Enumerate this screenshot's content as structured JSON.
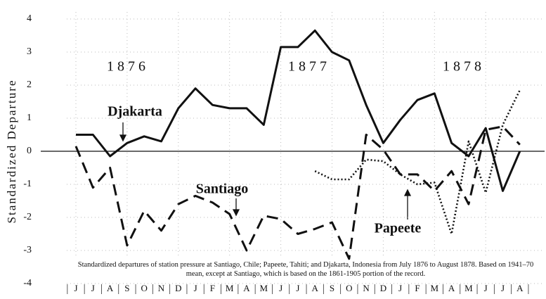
{
  "chart_data": {
    "type": "line",
    "y_label": "Standardized Departure",
    "caption": "Standardized departures of station pressure at Santiago, Chile; Papeete, Tahiti; and Djakarta, Indonesia from July 1876 to August 1878. Based on 1941–70 mean, except at Santiago, which is based on the 1861-1905 portion of the record.",
    "annotations": [
      "1876",
      "1877",
      "1878"
    ],
    "categories": [
      "J",
      "J",
      "A",
      "S",
      "O",
      "N",
      "D",
      "J",
      "F",
      "M",
      "A",
      "M",
      "J",
      "J",
      "A",
      "S",
      "O",
      "N",
      "D",
      "J",
      "F",
      "M",
      "A",
      "M",
      "J",
      "J",
      "A"
    ],
    "series": [
      {
        "name": "Djakarta",
        "color": "#111111",
        "dash": "solid",
        "values": [
          0.5,
          0.5,
          -0.15,
          0.25,
          0.45,
          0.3,
          1.3,
          1.9,
          1.4,
          1.3,
          1.3,
          0.8,
          3.15,
          3.15,
          3.65,
          3.0,
          2.75,
          1.4,
          0.25,
          0.95,
          1.55,
          1.75,
          0.25,
          -0.15,
          0.7,
          -1.2,
          0.0
        ]
      },
      {
        "name": "Santiago",
        "color": "#111111",
        "dash": "dashed",
        "values": [
          0.15,
          -1.1,
          -0.5,
          -2.85,
          -1.8,
          -2.4,
          -1.6,
          -1.35,
          -1.55,
          -1.9,
          -3.0,
          -1.95,
          -2.05,
          -2.5,
          -2.35,
          -2.15,
          -3.25,
          0.5,
          0.05,
          -0.7,
          -0.7,
          -1.2,
          -0.6,
          -1.6,
          0.65,
          0.75,
          0.2
        ]
      },
      {
        "name": "Papeete",
        "color": "#111111",
        "dash": "dotted",
        "values": [
          null,
          null,
          null,
          null,
          null,
          null,
          null,
          null,
          null,
          null,
          null,
          null,
          null,
          null,
          -0.6,
          -0.85,
          -0.85,
          -0.25,
          -0.3,
          -0.7,
          -1.0,
          -0.95,
          -2.5,
          0.3,
          -1.25,
          0.8,
          1.85
        ]
      }
    ],
    "ylim": [
      -4,
      4
    ],
    "yticks": [
      4,
      3,
      2,
      1,
      0,
      -1,
      -2,
      -3,
      -4
    ],
    "grid": true
  }
}
